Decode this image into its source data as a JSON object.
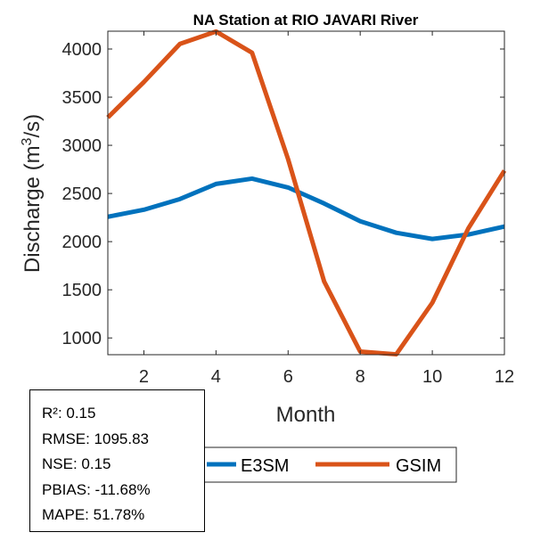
{
  "chart_data": {
    "type": "line",
    "title": "NA  Station at  RIO JAVARI  River",
    "xlabel": "Month",
    "ylabel": "Discharge (m³/s)",
    "xlim": [
      1,
      12
    ],
    "ylim": [
      826,
      4185
    ],
    "xticks": [
      2,
      4,
      6,
      8,
      10,
      12
    ],
    "yticks": [
      1000,
      1500,
      2000,
      2500,
      3000,
      3500,
      4000
    ],
    "grid": false,
    "legend_placement": "bottom-outside",
    "x": [
      1,
      2,
      3,
      4,
      5,
      6,
      7,
      8,
      9,
      10,
      11,
      12
    ],
    "series": [
      {
        "name": "E3SM",
        "color": "#0072BD",
        "values": [
          2258,
          2331,
          2442,
          2599,
          2654,
          2562,
          2396,
          2212,
          2092,
          2028,
          2074,
          2157
        ]
      },
      {
        "name": "GSIM",
        "color": "#D95319",
        "values": [
          3289,
          3657,
          4053,
          4182,
          3961,
          2856,
          1586,
          858,
          830,
          1365,
          2138,
          2737
        ]
      }
    ]
  },
  "stats": [
    "R²: 0.15",
    "RMSE: 1095.83",
    "NSE: 0.15",
    "PBIAS: -11.68%",
    "MAPE: 51.78%"
  ]
}
